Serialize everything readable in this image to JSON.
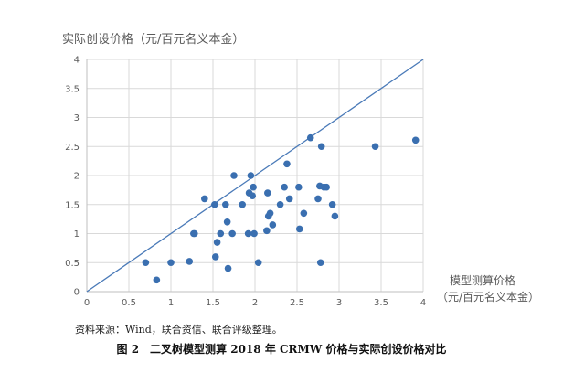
{
  "chart_data": {
    "type": "scatter",
    "ylabel": "实际创设价格（元/百元名义本金）",
    "xlabel_line1": "模型测算价格",
    "xlabel_line2": "（元/百元名义本金）",
    "xlim": [
      0,
      4
    ],
    "ylim": [
      0,
      4
    ],
    "x_ticks": [
      "0",
      "0.5",
      "1",
      "1.5",
      "2",
      "2.5",
      "3",
      "3.5",
      "4"
    ],
    "y_ticks": [
      "0",
      "0.5",
      "1",
      "1.5",
      "2",
      "2.5",
      "3",
      "3.5",
      "4"
    ],
    "grid": true,
    "reference_line": {
      "from": [
        0,
        0
      ],
      "to": [
        4,
        4
      ]
    },
    "point_color": "#3a6fb0",
    "line_color": "#4a7ab8",
    "points": [
      [
        0.7,
        0.5
      ],
      [
        0.83,
        0.2
      ],
      [
        1.0,
        0.5
      ],
      [
        1.22,
        0.52
      ],
      [
        1.27,
        1.0
      ],
      [
        1.28,
        1.0
      ],
      [
        1.4,
        1.6
      ],
      [
        1.52,
        1.5
      ],
      [
        1.53,
        0.6
      ],
      [
        1.55,
        0.85
      ],
      [
        1.59,
        1.0
      ],
      [
        1.65,
        1.5
      ],
      [
        1.67,
        1.2
      ],
      [
        1.68,
        0.4
      ],
      [
        1.73,
        1.0
      ],
      [
        1.75,
        2.0
      ],
      [
        1.85,
        1.5
      ],
      [
        1.92,
        1.0
      ],
      [
        1.93,
        1.7
      ],
      [
        1.95,
        2.0
      ],
      [
        1.97,
        1.65
      ],
      [
        1.98,
        1.8
      ],
      [
        1.99,
        1.0
      ],
      [
        2.04,
        0.5
      ],
      [
        2.14,
        1.05
      ],
      [
        2.15,
        1.7
      ],
      [
        2.16,
        1.3
      ],
      [
        2.18,
        1.35
      ],
      [
        2.21,
        1.15
      ],
      [
        2.3,
        1.5
      ],
      [
        2.35,
        1.8
      ],
      [
        2.38,
        2.2
      ],
      [
        2.41,
        1.6
      ],
      [
        2.52,
        1.8
      ],
      [
        2.53,
        1.08
      ],
      [
        2.58,
        1.35
      ],
      [
        2.66,
        2.65
      ],
      [
        2.75,
        1.6
      ],
      [
        2.77,
        1.82
      ],
      [
        2.78,
        0.5
      ],
      [
        2.79,
        2.5
      ],
      [
        2.82,
        1.8
      ],
      [
        2.85,
        1.8
      ],
      [
        2.92,
        1.5
      ],
      [
        2.95,
        1.3
      ],
      [
        3.43,
        2.5
      ],
      [
        3.91,
        2.61
      ]
    ]
  },
  "source_text": "资料来源：Wind，联合资信、联合评级整理。",
  "caption": "图 2　二叉树模型测算 2018 年 CRMW 价格与实际创设价格对比"
}
